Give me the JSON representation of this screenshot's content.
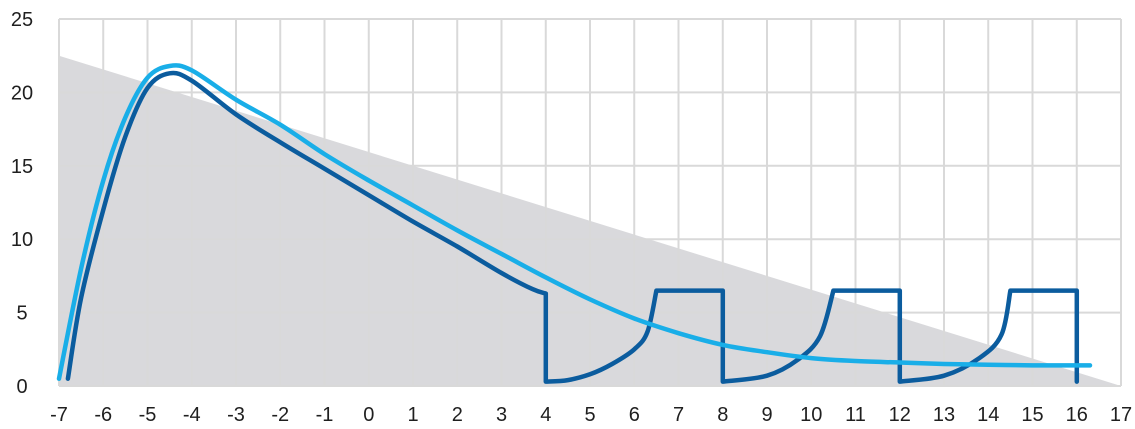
{
  "chart_data": {
    "type": "line",
    "title": "",
    "xlabel": "",
    "ylabel": "",
    "xlim": [
      -7,
      17
    ],
    "ylim": [
      0,
      25
    ],
    "grid": true,
    "legend": "none",
    "x_ticks": [
      "-7",
      "-6",
      "-5",
      "-4",
      "-3",
      "-2",
      "-1",
      "0",
      "1",
      "2",
      "3",
      "4",
      "5",
      "6",
      "7",
      "8",
      "9",
      "10",
      "11",
      "12",
      "13",
      "14",
      "15",
      "16",
      "17"
    ],
    "y_ticks": [
      "0",
      "5",
      "10",
      "15",
      "20",
      "25"
    ],
    "colors": {
      "area": "#d9d9dc",
      "grid": "#d9d9d9",
      "dark_series": "#0b5c9e",
      "light_series": "#19aee8"
    },
    "area": {
      "points": [
        [
          -7,
          22.5
        ],
        [
          17,
          0
        ]
      ]
    },
    "series": [
      {
        "key": "dark",
        "points": [
          [
            -6.8,
            0.5
          ],
          [
            -6.5,
            6
          ],
          [
            -6,
            12
          ],
          [
            -5.5,
            17
          ],
          [
            -5,
            20.3
          ],
          [
            -4.5,
            21.3
          ],
          [
            -4,
            20.8
          ],
          [
            -3,
            18.5
          ],
          [
            -2,
            16.6
          ],
          [
            -1,
            14.8
          ],
          [
            0,
            13
          ],
          [
            1,
            11.2
          ],
          [
            2,
            9.5
          ],
          [
            3,
            7.7
          ],
          [
            3.7,
            6.6
          ],
          [
            4,
            6.3
          ],
          [
            4,
            0.3
          ],
          [
            4.5,
            0.4
          ],
          [
            5,
            0.8
          ],
          [
            5.5,
            1.5
          ],
          [
            6,
            2.5
          ],
          [
            6.3,
            3.7
          ],
          [
            6.5,
            6.5
          ],
          [
            8,
            6.5
          ],
          [
            8,
            0.3
          ],
          [
            9,
            0.7
          ],
          [
            9.7,
            1.8
          ],
          [
            10.2,
            3.4
          ],
          [
            10.5,
            6.5
          ],
          [
            12,
            6.5
          ],
          [
            12,
            0.3
          ],
          [
            13,
            0.7
          ],
          [
            13.8,
            1.9
          ],
          [
            14.3,
            3.5
          ],
          [
            14.5,
            6.5
          ],
          [
            16,
            6.5
          ],
          [
            16,
            0.3
          ]
        ]
      },
      {
        "key": "light",
        "points": [
          [
            -7,
            0.5
          ],
          [
            -6.5,
            8
          ],
          [
            -6,
            14
          ],
          [
            -5.5,
            18.3
          ],
          [
            -5,
            21
          ],
          [
            -4.5,
            21.8
          ],
          [
            -4,
            21.5
          ],
          [
            -3,
            19.5
          ],
          [
            -2,
            17.8
          ],
          [
            -1,
            15.8
          ],
          [
            0,
            14
          ],
          [
            1,
            12.3
          ],
          [
            2,
            10.6
          ],
          [
            3,
            9
          ],
          [
            4,
            7.4
          ],
          [
            5,
            5.9
          ],
          [
            6,
            4.6
          ],
          [
            7,
            3.6
          ],
          [
            8,
            2.8
          ],
          [
            9,
            2.3
          ],
          [
            10,
            1.9
          ],
          [
            11,
            1.7
          ],
          [
            12,
            1.6
          ],
          [
            13,
            1.5
          ],
          [
            14,
            1.45
          ],
          [
            15,
            1.4
          ],
          [
            16.3,
            1.4
          ]
        ]
      }
    ]
  }
}
